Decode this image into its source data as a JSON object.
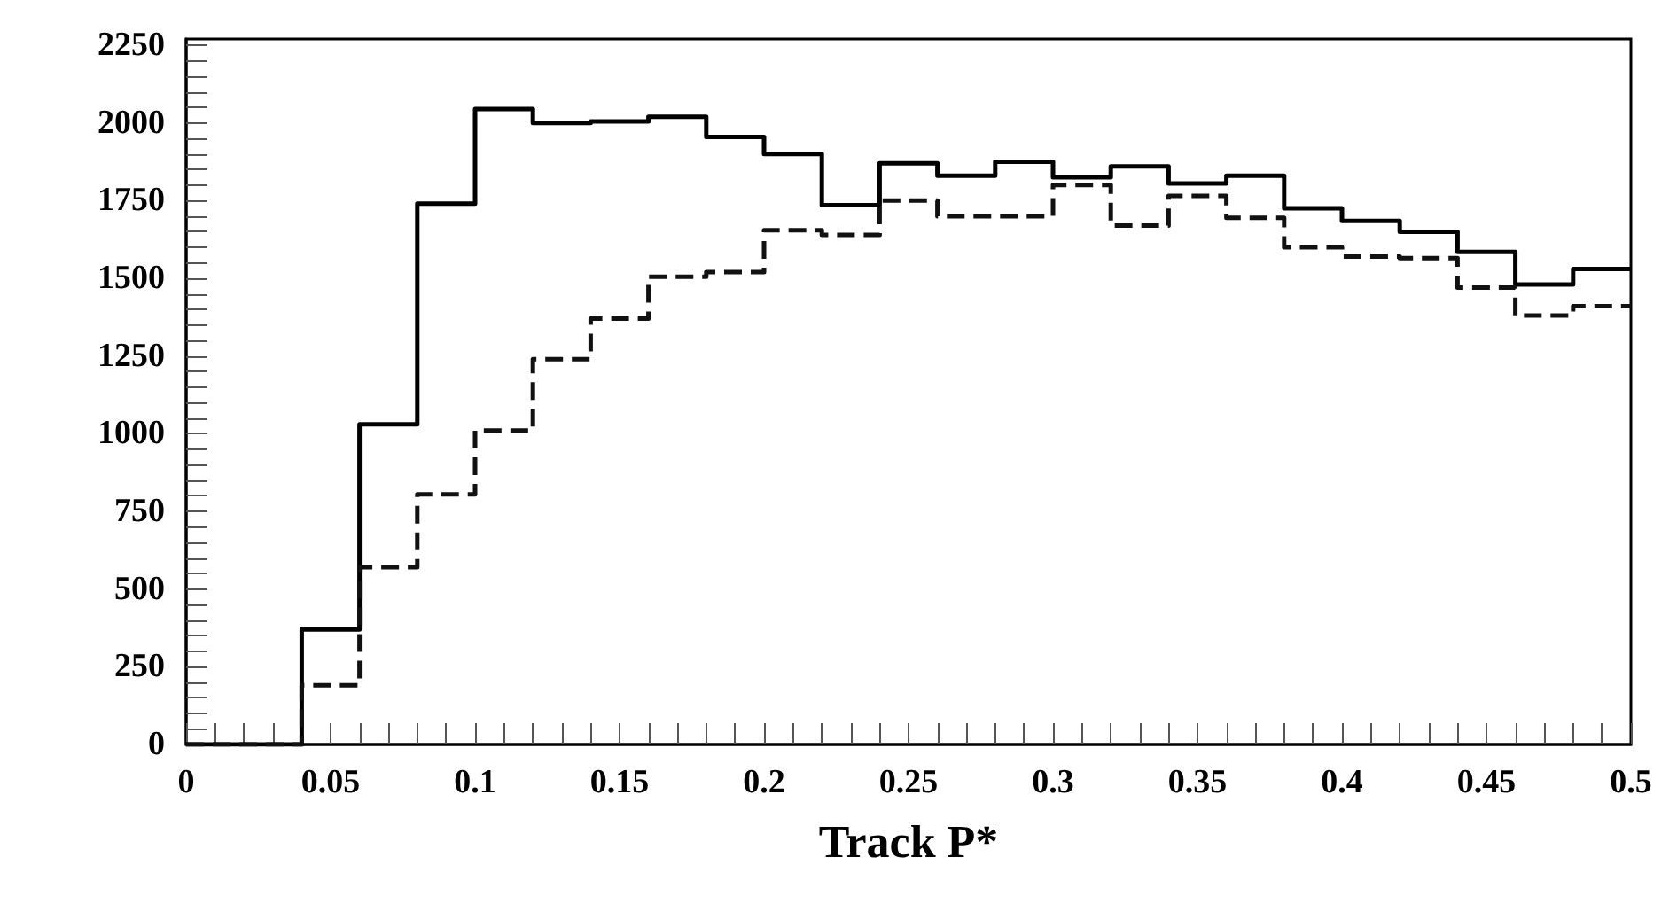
{
  "chart_data": {
    "type": "histogram",
    "xlabel": "Track P*",
    "bins": [
      0,
      0.02,
      0.04,
      0.06,
      0.08,
      0.1,
      0.12,
      0.14,
      0.16,
      0.18,
      0.2,
      0.22,
      0.24,
      0.26,
      0.28,
      0.3,
      0.32,
      0.34,
      0.36,
      0.38,
      0.4,
      0.42,
      0.44,
      0.46,
      0.48,
      0.5
    ],
    "series": [
      {
        "color": "#000000",
        "line_style": "solid",
        "values": [
          0,
          0,
          370,
          1030,
          1740,
          2045,
          2000,
          2005,
          2020,
          1955,
          1900,
          1735,
          1870,
          1830,
          1875,
          1825,
          1860,
          1805,
          1830,
          1725,
          1685,
          1650,
          1585,
          1480,
          1530
        ]
      },
      {
        "color": "#111111",
        "line_style": "dashed",
        "values": [
          0,
          0,
          190,
          570,
          805,
          1010,
          1240,
          1370,
          1505,
          1520,
          1655,
          1640,
          1750,
          1700,
          1700,
          1800,
          1670,
          1765,
          1695,
          1600,
          1570,
          1565,
          1470,
          1380,
          1410
        ]
      }
    ],
    "xlim": [
      0,
      0.5
    ],
    "xticks": [
      0,
      {
        "value": 0.01,
        "label": null
      },
      {
        "value": 0.02,
        "label": null
      },
      {
        "value": 0.03,
        "label": null
      },
      {
        "value": 0.04,
        "label": null
      },
      0.05,
      {
        "value": 0.06,
        "label": null
      },
      {
        "value": 0.07,
        "label": null
      },
      {
        "value": 0.08,
        "label": null
      },
      {
        "value": 0.09,
        "label": null
      },
      0.1,
      {
        "value": 0.11,
        "label": null
      },
      {
        "value": 0.12,
        "label": null
      },
      {
        "value": 0.13,
        "label": null
      },
      {
        "value": 0.14,
        "label": null
      },
      0.15,
      {
        "value": 0.16,
        "label": null
      },
      {
        "value": 0.17,
        "label": null
      },
      {
        "value": 0.18,
        "label": null
      },
      {
        "value": 0.19,
        "label": null
      },
      0.2,
      {
        "value": 0.21,
        "label": null
      },
      {
        "value": 0.22,
        "label": null
      },
      {
        "value": 0.23,
        "label": null
      },
      {
        "value": 0.24,
        "label": null
      },
      0.25,
      {
        "value": 0.26,
        "label": null
      },
      {
        "value": 0.27,
        "label": null
      },
      {
        "value": 0.28,
        "label": null
      },
      {
        "value": 0.29,
        "label": null
      },
      0.3,
      {
        "value": 0.31,
        "label": null
      },
      {
        "value": 0.32,
        "label": null
      },
      {
        "value": 0.33,
        "label": null
      },
      {
        "value": 0.34,
        "label": null
      },
      0.35,
      {
        "value": 0.36,
        "label": null
      },
      {
        "value": 0.37,
        "label": null
      },
      {
        "value": 0.38,
        "label": null
      },
      {
        "value": 0.39,
        "label": null
      },
      0.4,
      {
        "value": 0.41,
        "label": null
      },
      {
        "value": 0.42,
        "label": null
      },
      {
        "value": 0.43,
        "label": null
      },
      {
        "value": 0.44,
        "label": null
      },
      0.45,
      {
        "value": 0.46,
        "label": null
      },
      {
        "value": 0.47,
        "label": null
      },
      {
        "value": 0.48,
        "label": null
      },
      {
        "value": 0.49,
        "label": null
      },
      0.5
    ],
    "ylim": [
      0,
      2270
    ],
    "yticks": [
      0,
      {
        "value": 50,
        "label": null
      },
      {
        "value": 100,
        "label": null
      },
      {
        "value": 150,
        "label": null
      },
      {
        "value": 200,
        "label": null
      },
      250,
      {
        "value": 300,
        "label": null
      },
      {
        "value": 350,
        "label": null
      },
      {
        "value": 400,
        "label": null
      },
      {
        "value": 450,
        "label": null
      },
      500,
      {
        "value": 550,
        "label": null
      },
      {
        "value": 600,
        "label": null
      },
      {
        "value": 650,
        "label": null
      },
      {
        "value": 700,
        "label": null
      },
      750,
      {
        "value": 800,
        "label": null
      },
      {
        "value": 850,
        "label": null
      },
      {
        "value": 900,
        "label": null
      },
      {
        "value": 950,
        "label": null
      },
      1000,
      {
        "value": 1050,
        "label": null
      },
      {
        "value": 1100,
        "label": null
      },
      {
        "value": 1150,
        "label": null
      },
      {
        "value": 1200,
        "label": null
      },
      1250,
      {
        "value": 1300,
        "label": null
      },
      {
        "value": 1350,
        "label": null
      },
      {
        "value": 1400,
        "label": null
      },
      {
        "value": 1450,
        "label": null
      },
      1500,
      {
        "value": 1550,
        "label": null
      },
      {
        "value": 1600,
        "label": null
      },
      {
        "value": 1650,
        "label": null
      },
      {
        "value": 1700,
        "label": null
      },
      1750,
      {
        "value": 1800,
        "label": null
      },
      {
        "value": 1850,
        "label": null
      },
      {
        "value": 1900,
        "label": null
      },
      {
        "value": 1950,
        "label": null
      },
      2000,
      {
        "value": 2050,
        "label": null
      },
      {
        "value": 2100,
        "label": null
      },
      {
        "value": 2150,
        "label": null
      },
      {
        "value": 2200,
        "label": null
      },
      2250
    ],
    "grid": false
  }
}
